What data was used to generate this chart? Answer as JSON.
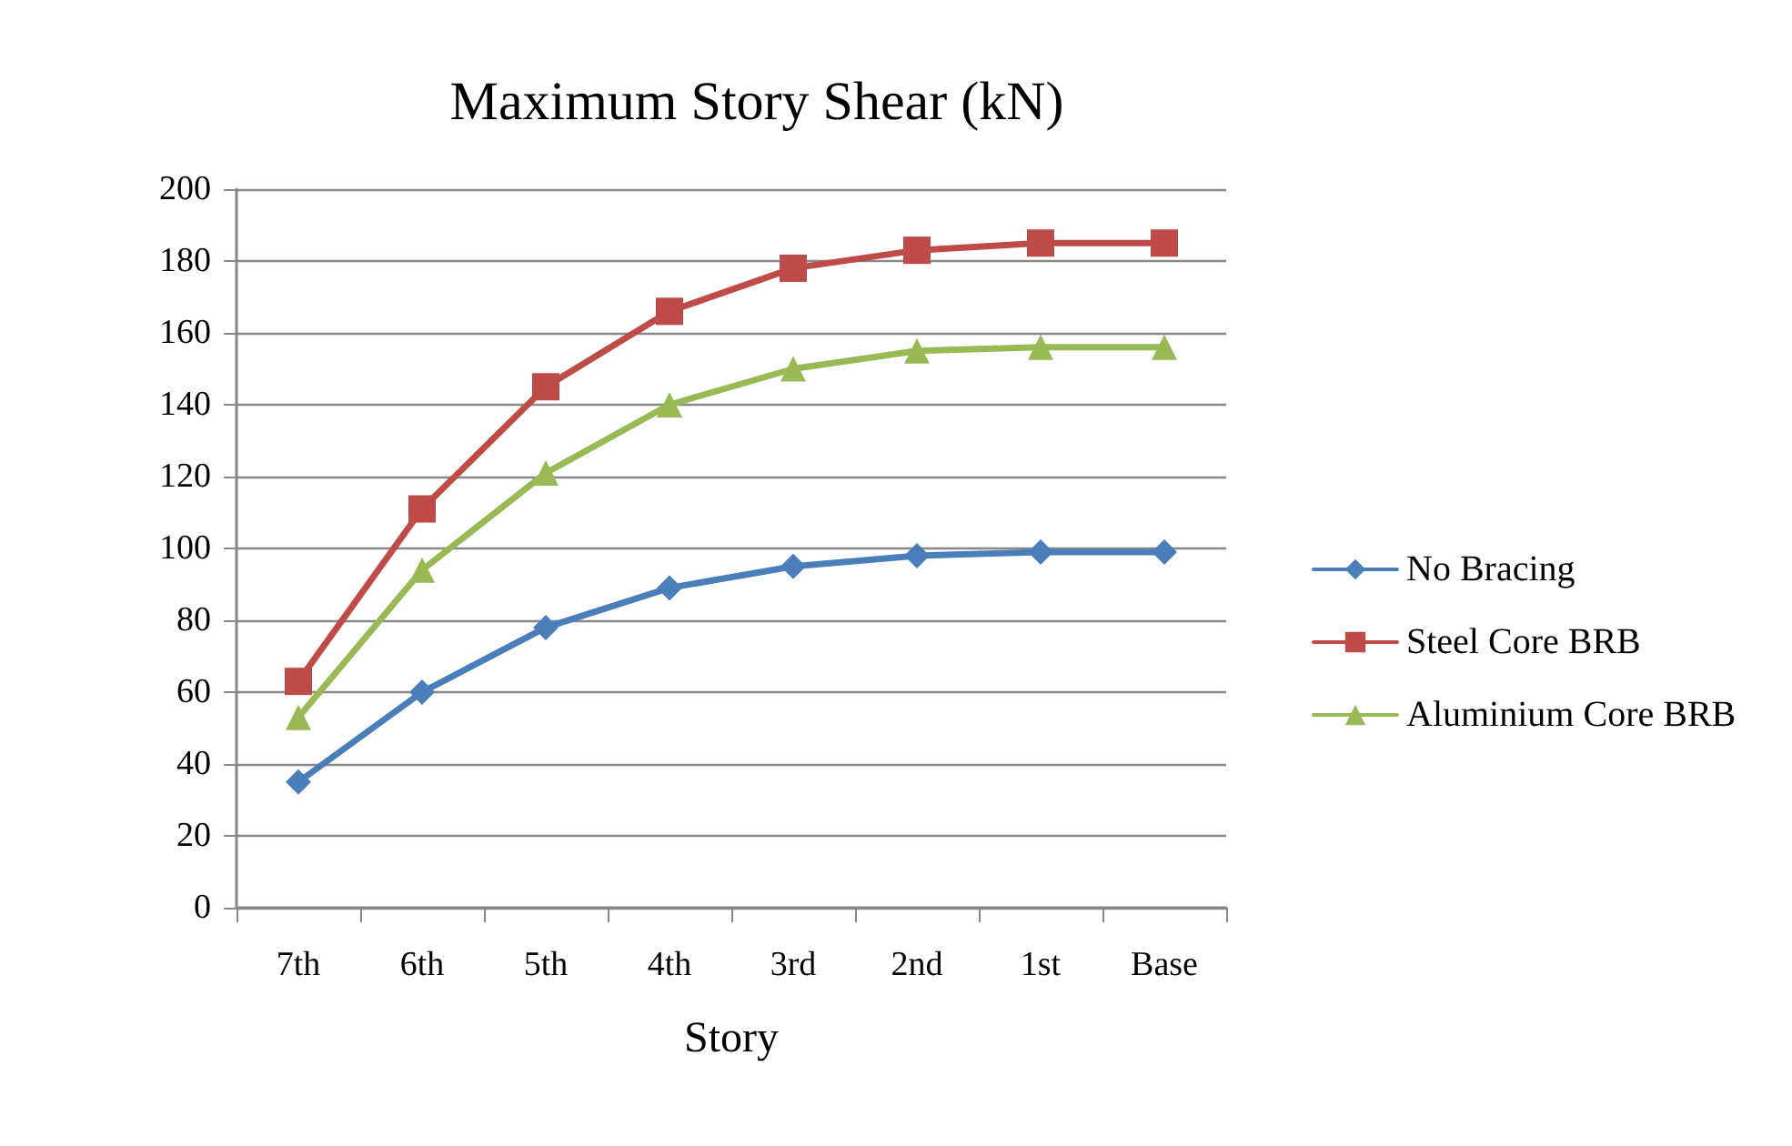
{
  "chart_data": {
    "type": "line",
    "title": "Maximum Story Shear (kN)",
    "xlabel": "Story",
    "categories": [
      "7th",
      "6th",
      "5th",
      "4th",
      "3rd",
      "2nd",
      "1st",
      "Base"
    ],
    "series": [
      {
        "name": "No Bracing",
        "color": "#4a7ebb",
        "marker": "diamond",
        "values": [
          35,
          60,
          78,
          89,
          95,
          98,
          99,
          99
        ]
      },
      {
        "name": "Steel Core BRB",
        "color": "#be4b48",
        "marker": "square",
        "values": [
          63,
          111,
          145,
          166,
          178,
          183,
          185,
          185
        ]
      },
      {
        "name": "Aluminium Core BRB",
        "color": "#98b954",
        "marker": "triangle",
        "values": [
          53,
          94,
          121,
          140,
          150,
          155,
          156,
          156
        ]
      }
    ],
    "ylim": [
      0,
      200
    ],
    "yticks": [
      0,
      20,
      40,
      60,
      80,
      100,
      120,
      140,
      160,
      180,
      200
    ],
    "grid": "y",
    "legend": "right",
    "line_style": "solid"
  }
}
